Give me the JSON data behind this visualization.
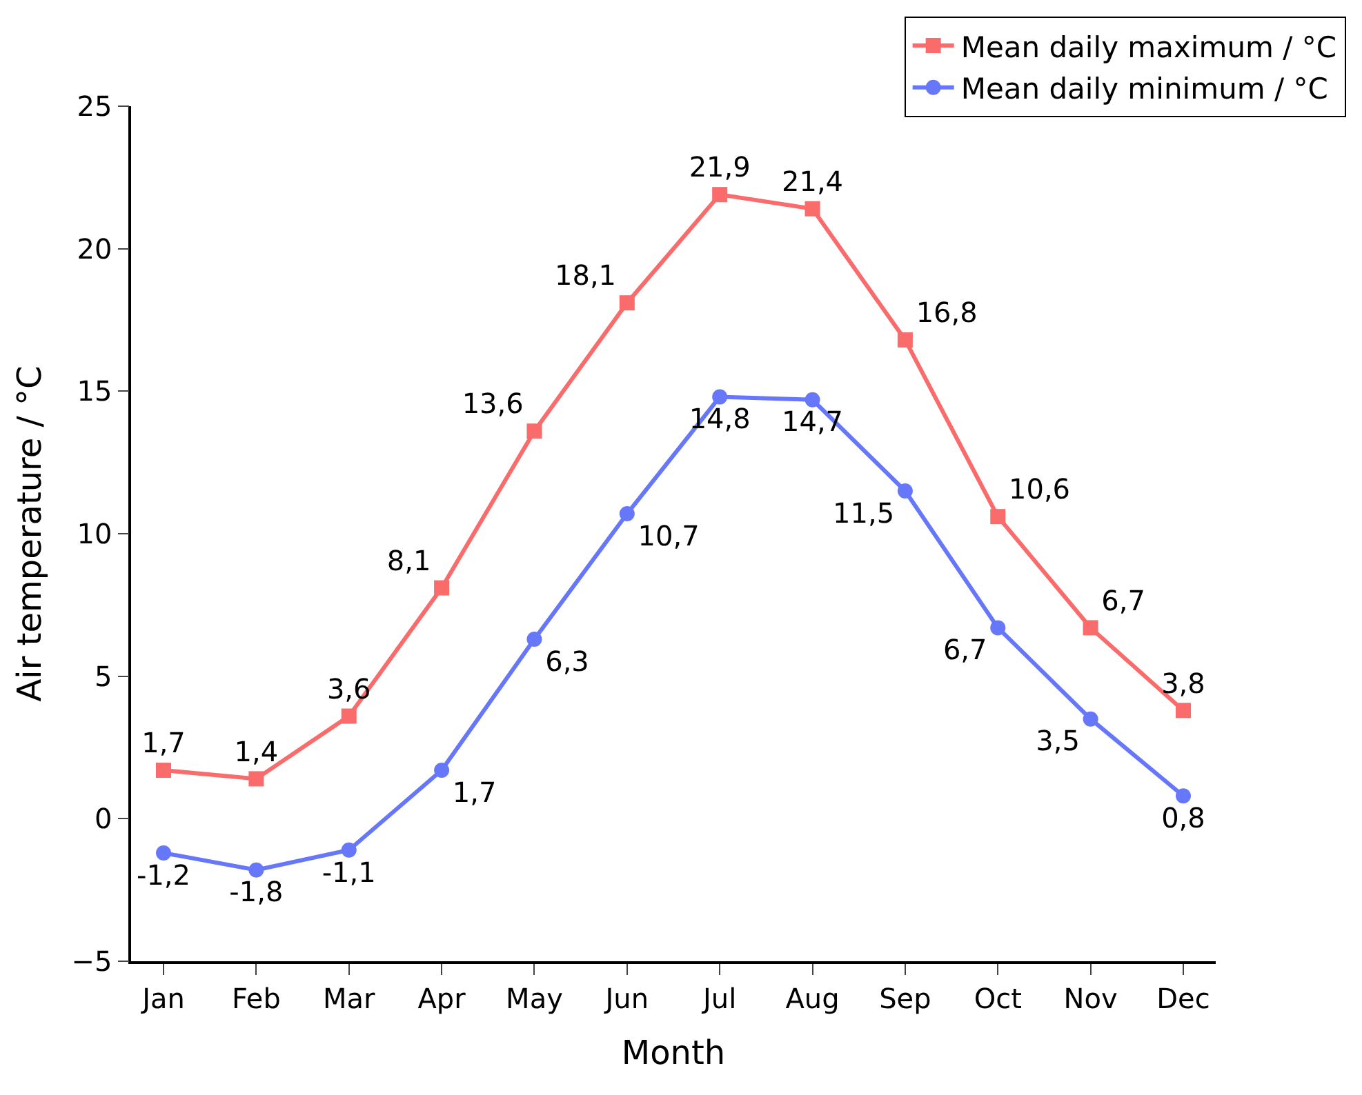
{
  "chart_data": {
    "type": "line",
    "xlabel": "Month",
    "ylabel": "Air temperature / °C",
    "categories": [
      "Jan",
      "Feb",
      "Mar",
      "Apr",
      "May",
      "Jun",
      "Jul",
      "Aug",
      "Sep",
      "Oct",
      "Nov",
      "Dec"
    ],
    "series": [
      {
        "name": "Mean daily maximum / °C",
        "color": "#fa6b6b",
        "marker": "square",
        "values": [
          1.7,
          1.4,
          3.6,
          8.1,
          13.6,
          18.1,
          21.9,
          21.4,
          16.8,
          10.6,
          6.7,
          3.8
        ],
        "value_labels": [
          "1,7",
          "1,4",
          "3,6",
          "8,1",
          "13,6",
          "18,1",
          "21,9",
          "21,4",
          "16,8",
          "10,6",
          "6,7",
          "3,8"
        ]
      },
      {
        "name": "Mean daily minimum / °C",
        "color": "#6677fa",
        "marker": "circle",
        "values": [
          -1.2,
          -1.8,
          -1.1,
          1.7,
          6.3,
          10.7,
          14.8,
          14.7,
          11.5,
          6.7,
          3.5,
          0.8
        ],
        "value_labels": [
          "-1,2",
          "-1,8",
          "-1,1",
          "1,7",
          "6,3",
          "10,7",
          "14,8",
          "14,7",
          "11,5",
          "6,7",
          "3,5",
          "0,8"
        ]
      }
    ],
    "ylim": [
      -5,
      25
    ],
    "yticks": [
      {
        "value": -5,
        "label": "−5"
      },
      0,
      5,
      10,
      15,
      20,
      25
    ],
    "legend": "top right",
    "line_style": "solid"
  }
}
